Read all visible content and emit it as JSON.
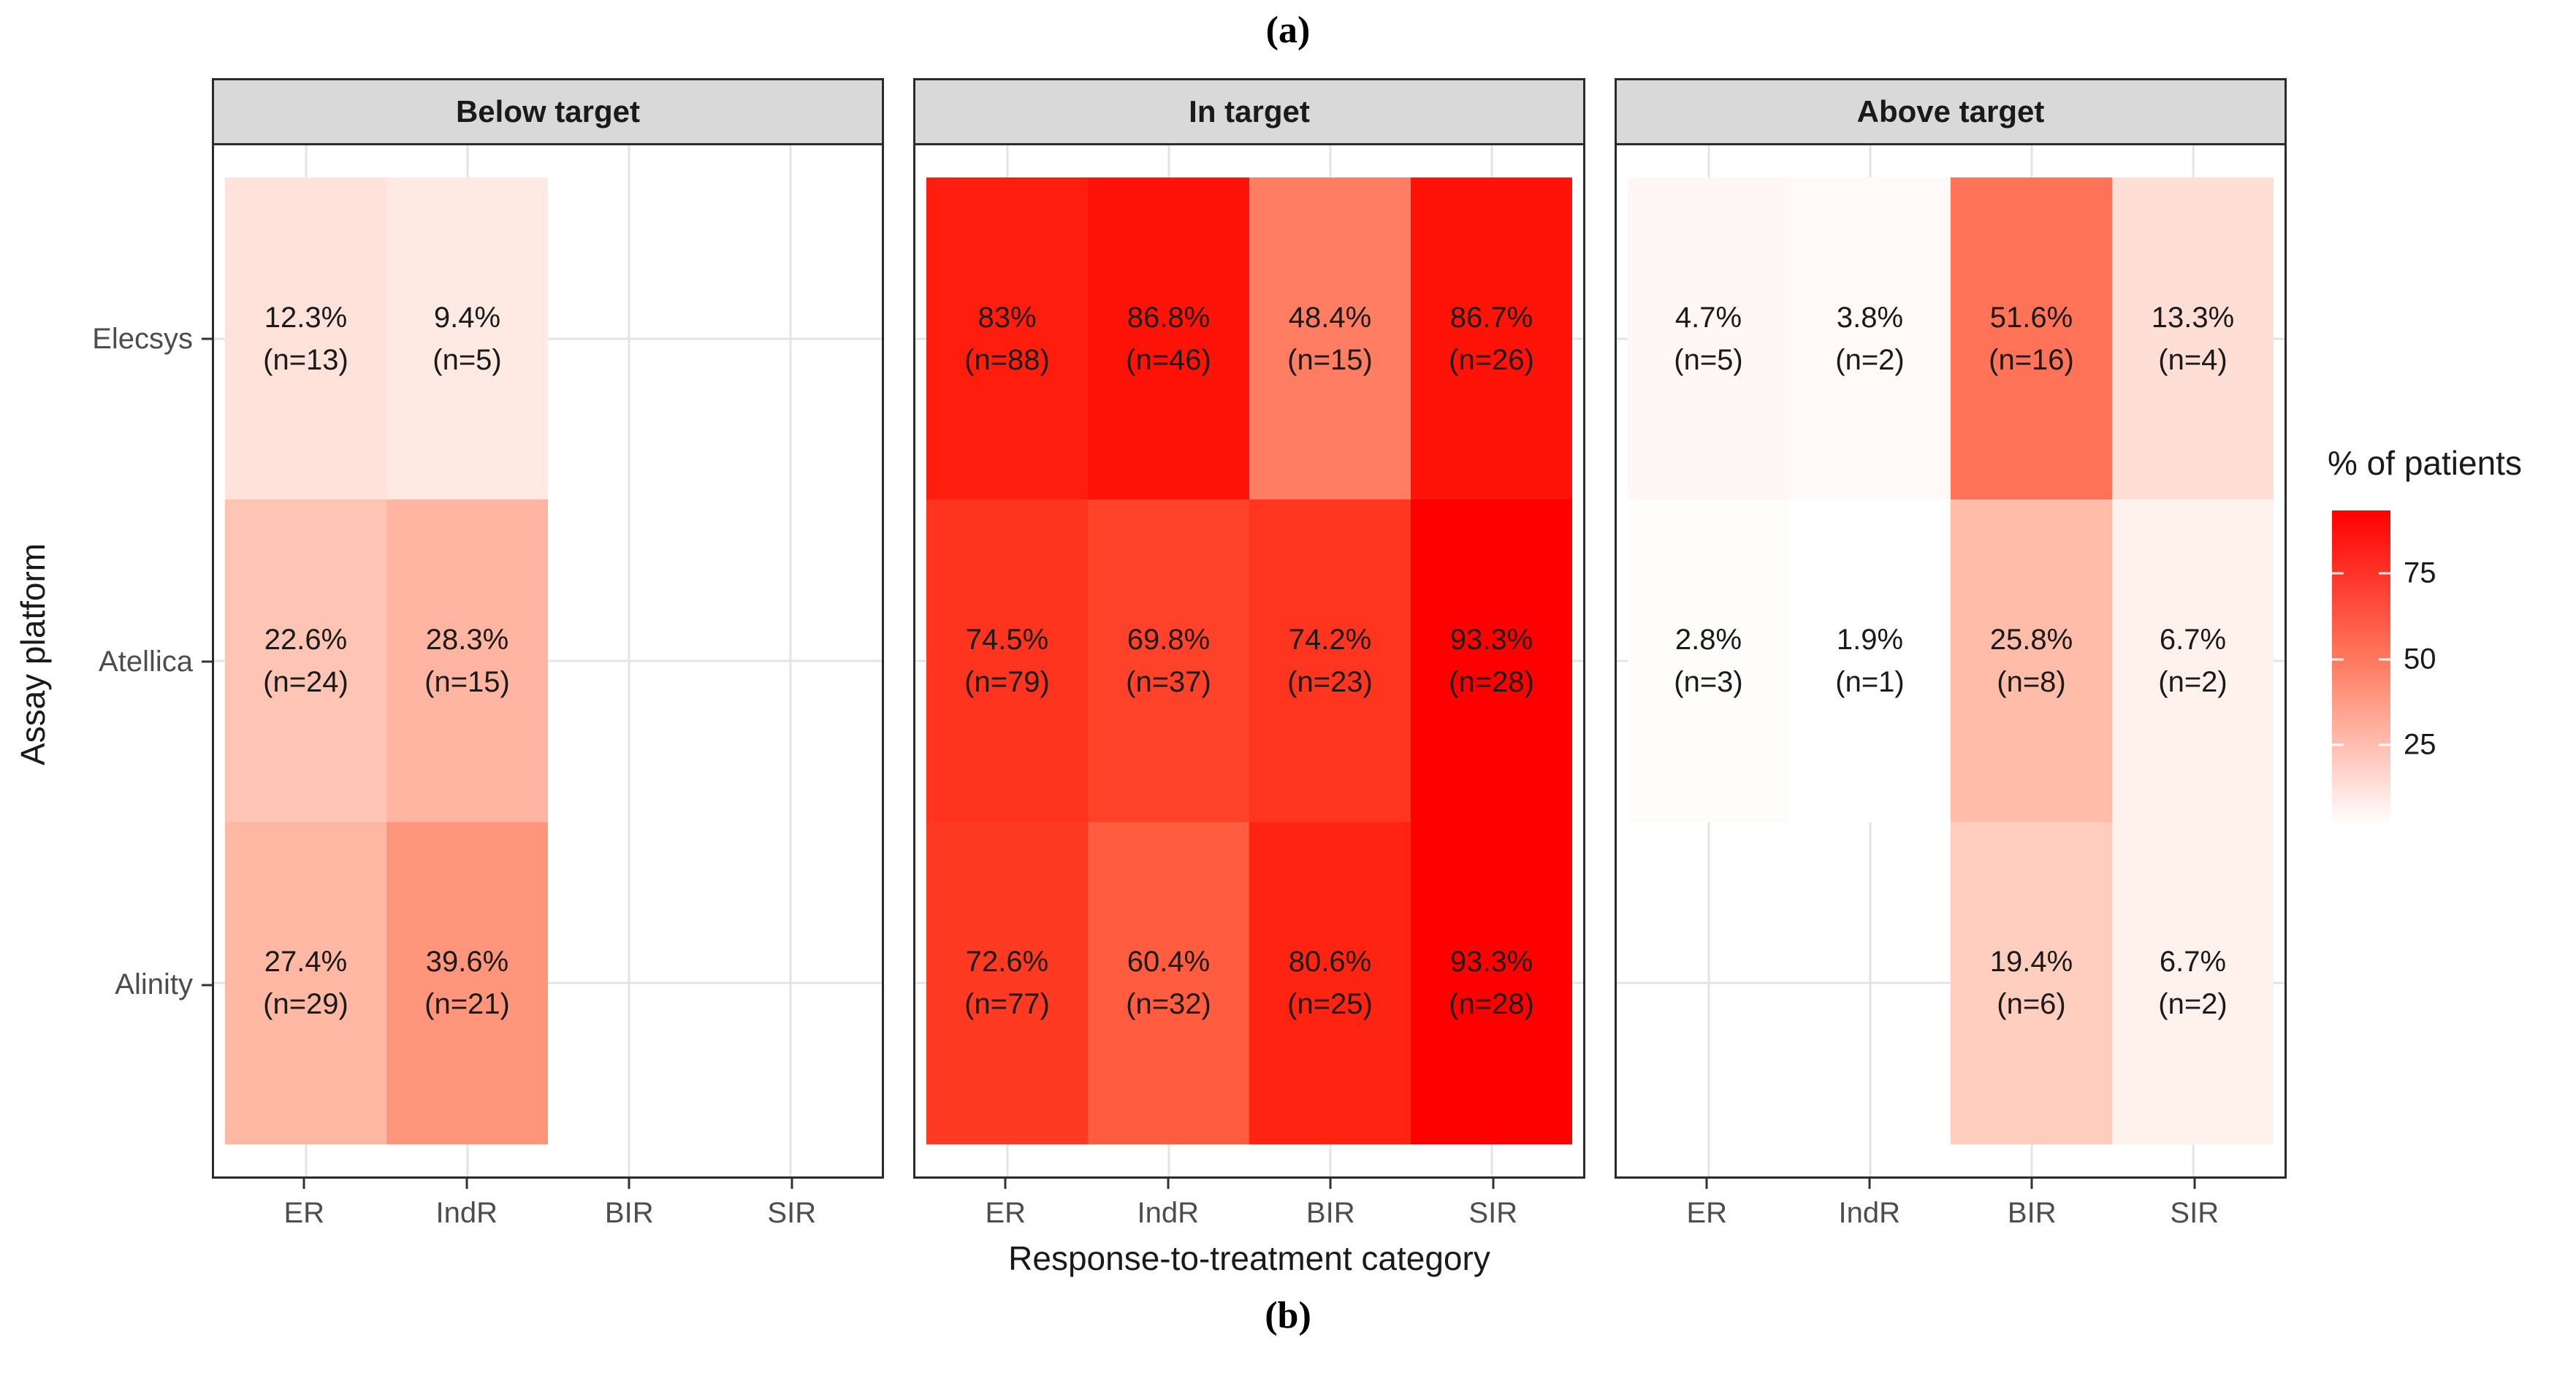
{
  "figure": {
    "label_top": "(a)",
    "label_bottom": "(b)"
  },
  "chart_data": {
    "type": "heatmap",
    "xlabel": "Response-to-treatment category",
    "ylabel": "Assay platform",
    "x_categories": [
      "ER",
      "IndR",
      "BIR",
      "SIR"
    ],
    "y_categories": [
      "Elecsys",
      "Atellica",
      "Alinity"
    ],
    "facets": [
      "Below target",
      "In target",
      "Above target"
    ],
    "legend": {
      "title": "% of patients",
      "ticks": [
        75,
        50,
        25
      ],
      "limits": [
        1.9,
        93.3
      ],
      "low_color": "#FFFFFF",
      "high_color": "#FF0000"
    },
    "grid": true,
    "panels": [
      {
        "facet": "Below target",
        "rows": [
          {
            "platform": "Elecsys",
            "cells": [
              {
                "pct": "12.3%",
                "n": "(n=13)",
                "value": 12.3
              },
              {
                "pct": "9.4%",
                "n": "(n=5)",
                "value": 9.4
              },
              null,
              null
            ]
          },
          {
            "platform": "Atellica",
            "cells": [
              {
                "pct": "22.6%",
                "n": "(n=24)",
                "value": 22.6
              },
              {
                "pct": "28.3%",
                "n": "(n=15)",
                "value": 28.3
              },
              null,
              null
            ]
          },
          {
            "platform": "Alinity",
            "cells": [
              {
                "pct": "27.4%",
                "n": "(n=29)",
                "value": 27.4
              },
              {
                "pct": "39.6%",
                "n": "(n=21)",
                "value": 39.6
              },
              null,
              null
            ]
          }
        ]
      },
      {
        "facet": "In target",
        "rows": [
          {
            "platform": "Elecsys",
            "cells": [
              {
                "pct": "83%",
                "n": "(n=88)",
                "value": 83
              },
              {
                "pct": "86.8%",
                "n": "(n=46)",
                "value": 86.8
              },
              {
                "pct": "48.4%",
                "n": "(n=15)",
                "value": 48.4
              },
              {
                "pct": "86.7%",
                "n": "(n=26)",
                "value": 86.7
              }
            ]
          },
          {
            "platform": "Atellica",
            "cells": [
              {
                "pct": "74.5%",
                "n": "(n=79)",
                "value": 74.5
              },
              {
                "pct": "69.8%",
                "n": "(n=37)",
                "value": 69.8
              },
              {
                "pct": "74.2%",
                "n": "(n=23)",
                "value": 74.2
              },
              {
                "pct": "93.3%",
                "n": "(n=28)",
                "value": 93.3
              }
            ]
          },
          {
            "platform": "Alinity",
            "cells": [
              {
                "pct": "72.6%",
                "n": "(n=77)",
                "value": 72.6
              },
              {
                "pct": "60.4%",
                "n": "(n=32)",
                "value": 60.4
              },
              {
                "pct": "80.6%",
                "n": "(n=25)",
                "value": 80.6
              },
              {
                "pct": "93.3%",
                "n": "(n=28)",
                "value": 93.3
              }
            ]
          }
        ]
      },
      {
        "facet": "Above target",
        "rows": [
          {
            "platform": "Elecsys",
            "cells": [
              {
                "pct": "4.7%",
                "n": "(n=5)",
                "value": 4.7
              },
              {
                "pct": "3.8%",
                "n": "(n=2)",
                "value": 3.8
              },
              {
                "pct": "51.6%",
                "n": "(n=16)",
                "value": 51.6
              },
              {
                "pct": "13.3%",
                "n": "(n=4)",
                "value": 13.3
              }
            ]
          },
          {
            "platform": "Atellica",
            "cells": [
              {
                "pct": "2.8%",
                "n": "(n=3)",
                "value": 2.8
              },
              {
                "pct": "1.9%",
                "n": "(n=1)",
                "value": 1.9
              },
              {
                "pct": "25.8%",
                "n": "(n=8)",
                "value": 25.8
              },
              {
                "pct": "6.7%",
                "n": "(n=2)",
                "value": 6.7
              }
            ]
          },
          {
            "platform": "Alinity",
            "cells": [
              null,
              null,
              {
                "pct": "19.4%",
                "n": "(n=6)",
                "value": 19.4
              },
              {
                "pct": "6.7%",
                "n": "(n=2)",
                "value": 6.7
              }
            ]
          }
        ]
      }
    ]
  }
}
